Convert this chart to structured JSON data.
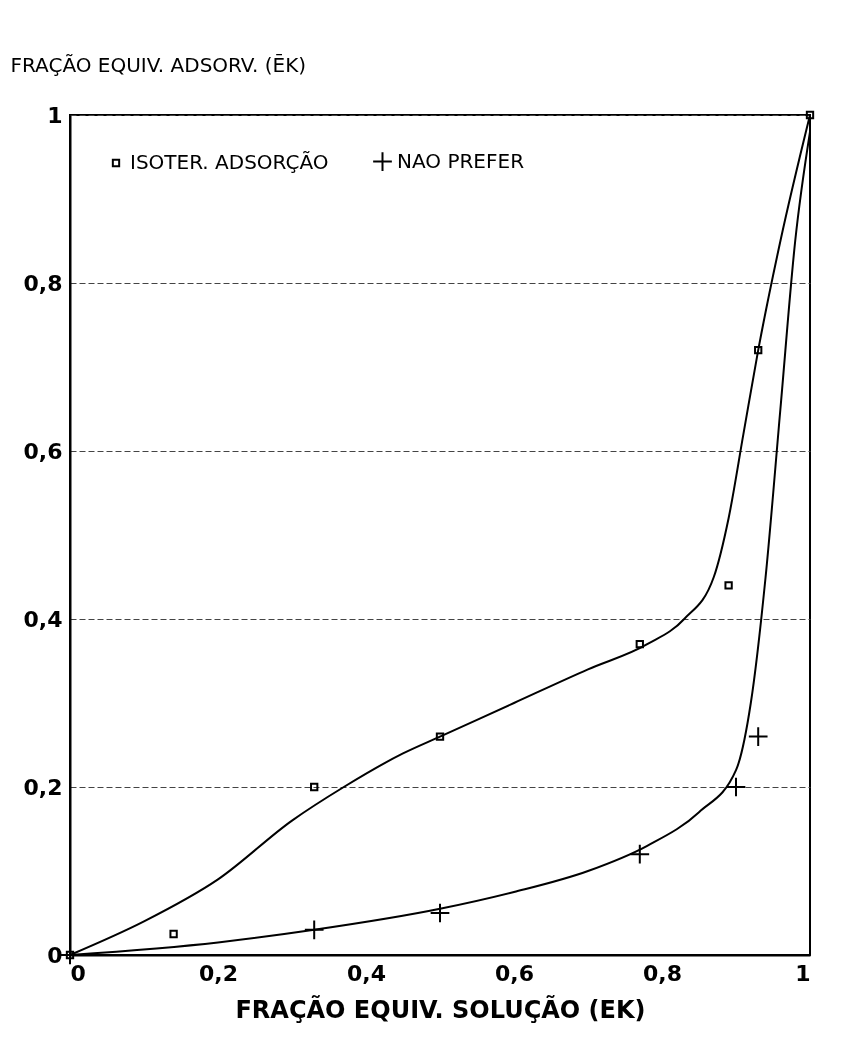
{
  "chart_data": {
    "type": "line",
    "xlabel": "FRAÇÃO EQUIV. SOLUÇÃO (EK)",
    "ylabel": "FRAÇÃO EQUIV. ADSORV. (ĒK)",
    "xlim": [
      0,
      1
    ],
    "ylim": [
      0,
      1
    ],
    "xticks": [
      0,
      {
        "value": 0.2,
        "label": "0,2"
      },
      {
        "value": 0.4,
        "label": "0,4"
      },
      {
        "value": 0.6,
        "label": "0,6"
      },
      {
        "value": 0.8,
        "label": "0,8"
      },
      1
    ],
    "yticks": [
      0,
      {
        "value": 0.2,
        "label": "0,2"
      },
      {
        "value": 0.4,
        "label": "0,4"
      },
      {
        "value": 0.6,
        "label": "0,6"
      },
      {
        "value": 0.8,
        "label": "0,8"
      },
      1
    ],
    "grid": "y",
    "legend": "top left",
    "series": [
      {
        "name": "ISOTER. ADSORÇÃO",
        "type": "scatter",
        "marker": "square",
        "color": "#000000",
        "x": [
          0,
          0.14,
          0.33,
          0.5,
          0.77,
          0.89,
          0.93,
          1
        ],
        "values": [
          0,
          0.025,
          0.2,
          0.26,
          0.37,
          0.44,
          0.72,
          1
        ]
      },
      {
        "name": "NAO PREFER",
        "type": "scatter",
        "marker": "cross",
        "color": "#000000",
        "x": [
          0,
          0.33,
          0.5,
          0.77,
          0.9,
          0.93
        ],
        "values": [
          0,
          0.03,
          0.05,
          0.12,
          0.2,
          0.26
        ]
      },
      {
        "type": "line",
        "color": "#000000",
        "x": [
          0,
          0.1,
          0.2,
          0.3,
          0.37,
          0.45,
          0.5,
          0.6,
          0.7,
          0.78,
          0.83,
          0.87,
          0.89,
          0.91,
          0.93,
          0.96,
          1
        ],
        "values": [
          0,
          0.04,
          0.09,
          0.16,
          0.2,
          0.24,
          0.26,
          0.3,
          0.34,
          0.37,
          0.4,
          0.45,
          0.52,
          0.62,
          0.72,
          0.85,
          1
        ]
      },
      {
        "type": "line",
        "color": "#000000",
        "x": [
          0,
          0.2,
          0.33,
          0.5,
          0.6,
          0.7,
          0.78,
          0.85,
          0.9,
          0.92,
          0.94,
          0.96,
          0.98,
          1
        ],
        "values": [
          0,
          0.015,
          0.03,
          0.055,
          0.075,
          0.1,
          0.13,
          0.17,
          0.22,
          0.3,
          0.45,
          0.65,
          0.85,
          0.98
        ]
      }
    ]
  }
}
